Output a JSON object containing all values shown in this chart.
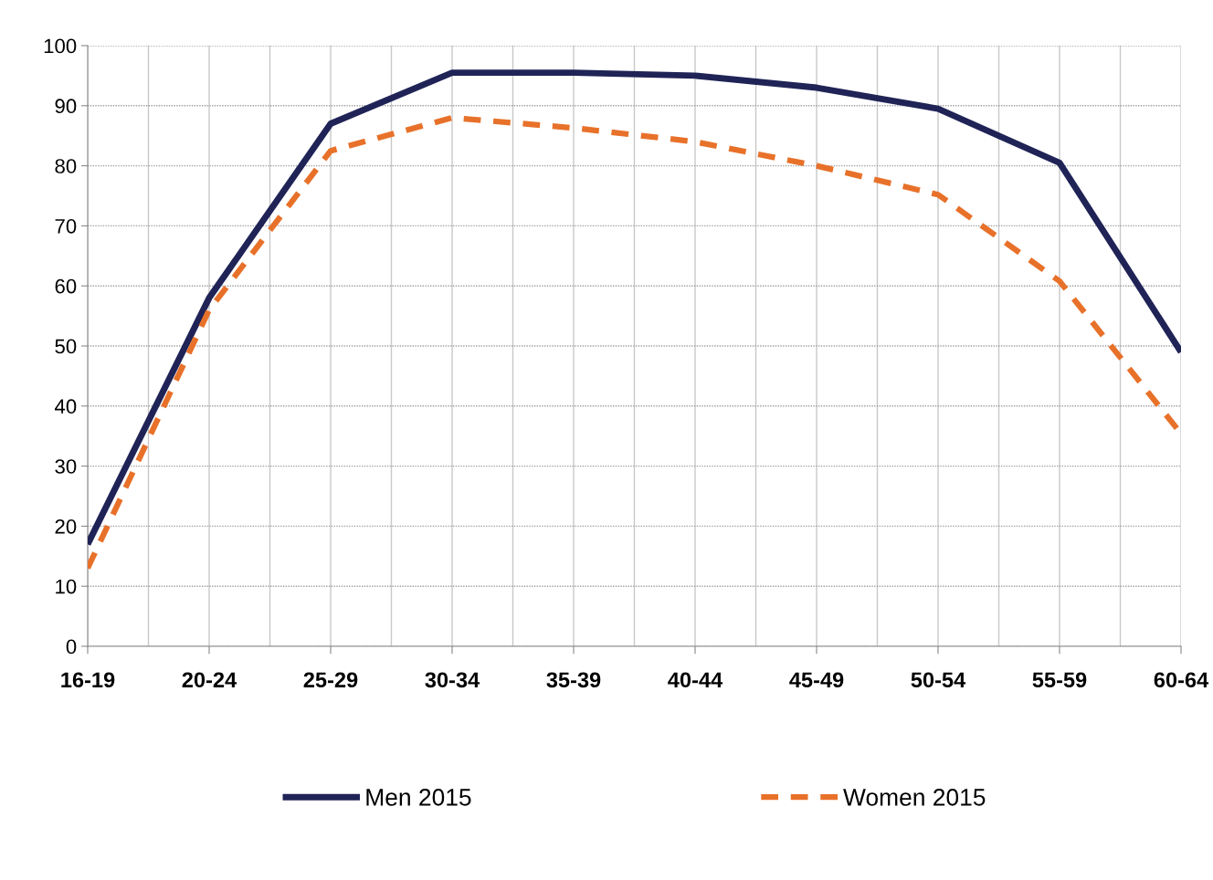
{
  "chart_data": {
    "type": "line",
    "categories": [
      "16-19",
      "20-24",
      "25-29",
      "30-34",
      "35-39",
      "40-44",
      "45-49",
      "50-54",
      "55-59",
      "60-64"
    ],
    "series": [
      {
        "name": "Men 2015",
        "color": "#1f2356",
        "line_style": "solid",
        "values": [
          17,
          58,
          87,
          95.5,
          95.5,
          95,
          93,
          89.5,
          80.5,
          49
        ]
      },
      {
        "name": "Women 2015",
        "color": "#e8712a",
        "line_style": "dashed",
        "values": [
          13,
          56,
          82.5,
          88,
          86.3,
          84,
          80,
          75.2,
          60.8,
          35.4
        ]
      }
    ],
    "ylim": [
      0,
      100
    ],
    "yticks": [
      0,
      10,
      20,
      30,
      40,
      50,
      60,
      70,
      80,
      90,
      100
    ],
    "grid": true,
    "legend": "bottom",
    "marker": "none"
  }
}
